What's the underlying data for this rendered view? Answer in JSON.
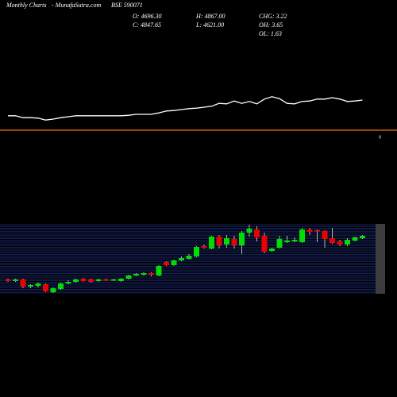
{
  "header": {
    "site": "Monthly Charts",
    "source": "- MunafaSutra.com",
    "symbol": "BSE 590071",
    "open": "O: 4696.30",
    "close": "C: 4847.65",
    "high": "H: 4867.00",
    "low": "L: 4621.00",
    "chg": "CHG: 3.22",
    "oh": "OH: 3.65",
    "ol": "OL: 1.63",
    "marker": "0"
  },
  "chart_data": [
    {
      "type": "line",
      "color": "#ffffff",
      "ylim": [
        0,
        100
      ],
      "values": [
        32,
        32,
        28,
        28,
        27,
        23,
        25,
        28,
        30,
        32,
        32,
        32,
        32,
        32,
        32,
        32,
        33,
        35,
        35,
        35,
        38,
        42,
        43,
        45,
        47,
        48,
        50,
        52,
        58,
        57,
        63,
        58,
        62,
        57,
        67,
        72,
        68,
        58,
        57,
        62,
        63,
        67,
        67,
        70,
        67,
        62,
        63,
        65
      ]
    },
    {
      "type": "candlestick",
      "up_color": "#00dd00",
      "down_color": "#ee0000",
      "ylim": [
        1000,
        5500
      ],
      "open": [
        2000,
        1900,
        2000,
        1550,
        1600,
        1700,
        1200,
        1400,
        1750,
        1850,
        2050,
        2000,
        1900,
        2000,
        1950,
        1900,
        2050,
        2250,
        2300,
        2400,
        2250,
        3100,
        2900,
        3200,
        3300,
        3450,
        4100,
        3950,
        4700,
        4200,
        4550,
        4150,
        4950,
        5150,
        4750,
        3800,
        4000,
        4350,
        4400,
        4350,
        5150,
        5100,
        5050,
        4600,
        4400,
        4200,
        4450,
        4600
      ],
      "high": [
        2050,
        2050,
        2050,
        1700,
        1800,
        1750,
        1500,
        1800,
        1950,
        2050,
        2100,
        2050,
        2050,
        2050,
        2050,
        2100,
        2300,
        2400,
        2450,
        2450,
        2900,
        3150,
        3250,
        3450,
        3600,
        4100,
        4200,
        4750,
        4800,
        4800,
        4750,
        5050,
        5450,
        5350,
        4950,
        4000,
        4750,
        4750,
        4650,
        5250,
        5250,
        5150,
        5100,
        5250,
        4500,
        4600,
        4700,
        4800
      ],
      "low": [
        1850,
        1850,
        1450,
        1450,
        1500,
        1200,
        1150,
        1350,
        1700,
        1800,
        1850,
        1800,
        1850,
        1900,
        1900,
        1850,
        2000,
        2200,
        2250,
        2200,
        2200,
        2850,
        2850,
        3150,
        3250,
        3400,
        3950,
        3900,
        3950,
        4000,
        3950,
        3600,
        4700,
        4400,
        3650,
        3750,
        3950,
        4300,
        4350,
        4300,
        4800,
        4350,
        4000,
        4250,
        4100,
        4100,
        4400,
        4550
      ],
      "close": [
        1900,
        2000,
        1550,
        1650,
        1750,
        1250,
        1450,
        1750,
        1850,
        2000,
        1900,
        1850,
        2000,
        1950,
        2000,
        2050,
        2250,
        2350,
        2400,
        2300,
        2850,
        2900,
        3200,
        3350,
        3500,
        4050,
        4000,
        4700,
        4150,
        4600,
        4150,
        4950,
        5200,
        4650,
        3750,
        3950,
        4550,
        4450,
        4500,
        5150,
        5000,
        5050,
        4550,
        4300,
        4200,
        4500,
        4650,
        4750
      ]
    }
  ]
}
